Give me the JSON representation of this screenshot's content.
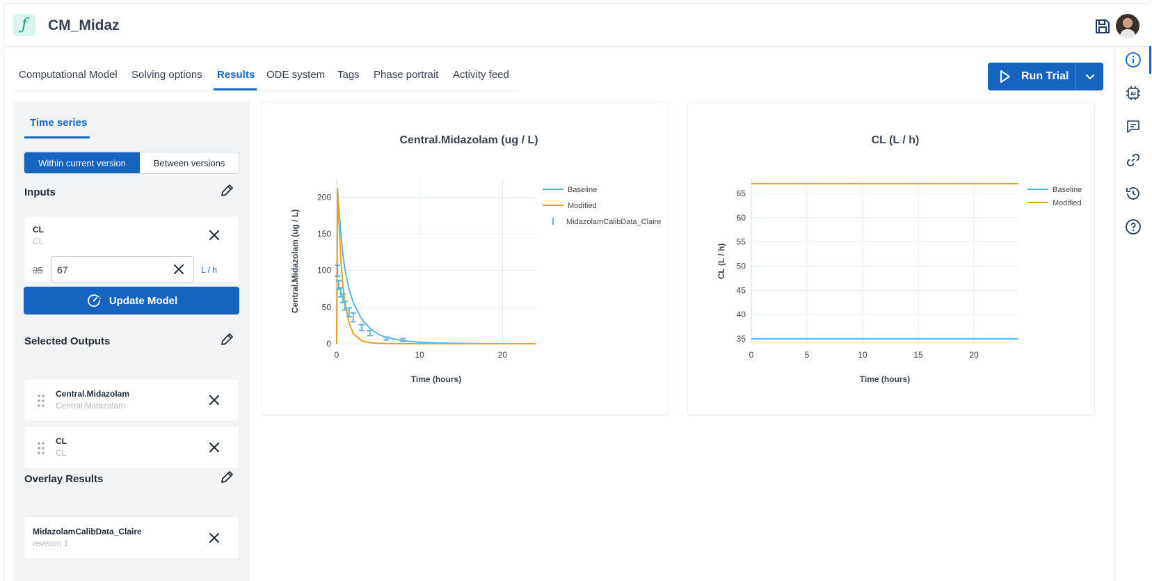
{
  "app": {
    "logo_glyph": "ƒ",
    "title": "CM_Midaz"
  },
  "header": {
    "icons": [
      "save-icon",
      "avatar"
    ]
  },
  "tabs": [
    {
      "label": "Computational Model",
      "active": false
    },
    {
      "label": "Solving options",
      "active": false
    },
    {
      "label": "Results",
      "active": true
    },
    {
      "label": "ODE system",
      "active": false
    },
    {
      "label": "Tags",
      "active": false
    },
    {
      "label": "Phase portrait",
      "active": false
    },
    {
      "label": "Activity feed",
      "active": false
    }
  ],
  "run_trial": {
    "label": "Run Trial"
  },
  "right_rail": {
    "icons": [
      "info-icon",
      "ai-chip-icon",
      "comment-icon",
      "link-icon",
      "history-icon",
      "help-icon"
    ],
    "active": "info-icon"
  },
  "left": {
    "subtab": "Time series",
    "segmented": {
      "on": "Within current version",
      "off": "Between versions"
    },
    "inputs": {
      "heading": "Inputs",
      "items": [
        {
          "name": "CL",
          "subtitle": "CL",
          "old_value": "35",
          "value": "67",
          "unit": "L / h"
        }
      ]
    },
    "update_label": "Update Model",
    "outputs": {
      "heading": "Selected Outputs",
      "items": [
        {
          "name": "Central.Midazolam",
          "subtitle": "Central.Midazolam"
        },
        {
          "name": "CL",
          "subtitle": "CL"
        }
      ]
    },
    "overlay": {
      "heading": "Overlay Results",
      "items": [
        {
          "name": "MidazolamCalibData_Claire",
          "subtitle": "revision 1"
        }
      ]
    }
  },
  "colors": {
    "primary": "#1565c0",
    "baseline": "#5ab4e5",
    "modified": "#f0a01e",
    "data": "#5ab4e5"
  },
  "chart_data": [
    {
      "type": "line",
      "title": "Central.Midazolam (ug / L)",
      "xlabel": "Time (hours)",
      "ylabel": "Central.Midazolam (ug / L)",
      "xlim": [
        0,
        24
      ],
      "ylim": [
        0,
        225
      ],
      "xticks": [
        0,
        10,
        20
      ],
      "yticks": [
        0,
        50,
        100,
        150,
        200
      ],
      "legend_position": "top-right",
      "grid": true,
      "series": [
        {
          "name": "Baseline",
          "color": "#5ab4e5",
          "x": [
            0,
            0.1,
            0.25,
            0.5,
            0.75,
            1,
            1.5,
            2,
            3,
            4,
            5,
            6,
            8,
            10,
            12,
            16,
            20,
            24
          ],
          "y": [
            0,
            211,
            188,
            150,
            122,
            101,
            74,
            56,
            34,
            21,
            13,
            8.5,
            4,
            2,
            1,
            0.3,
            0.1,
            0
          ]
        },
        {
          "name": "Modified",
          "color": "#f0a01e",
          "x": [
            0,
            0.1,
            0.25,
            0.5,
            0.75,
            1,
            1.5,
            2,
            3,
            4,
            5,
            6,
            8,
            10,
            12,
            16,
            20,
            24
          ],
          "y": [
            0,
            212,
            170,
            115,
            80,
            56,
            28,
            14,
            4,
            1.5,
            0.6,
            0.2,
            0,
            0,
            0,
            0,
            0,
            0
          ]
        }
      ],
      "errorbars": {
        "name": "MidazolamCalibData_Claire",
        "color": "#5ab4e5",
        "points": [
          {
            "x": 0.1,
            "y": 100,
            "low": 92,
            "high": 107
          },
          {
            "x": 0.25,
            "y": 80,
            "low": 74,
            "high": 86
          },
          {
            "x": 0.5,
            "y": 70,
            "low": 64,
            "high": 76
          },
          {
            "x": 0.75,
            "y": 62,
            "low": 56,
            "high": 68
          },
          {
            "x": 1,
            "y": 52,
            "low": 46,
            "high": 58
          },
          {
            "x": 1.5,
            "y": 43,
            "low": 37,
            "high": 49
          },
          {
            "x": 2,
            "y": 36,
            "low": 30,
            "high": 42
          },
          {
            "x": 3,
            "y": 22,
            "low": 18,
            "high": 26
          },
          {
            "x": 4,
            "y": 15,
            "low": 11,
            "high": 18
          },
          {
            "x": 6,
            "y": 7,
            "low": 5,
            "high": 9
          },
          {
            "x": 8,
            "y": 5,
            "low": 3,
            "high": 7
          }
        ]
      }
    },
    {
      "type": "line",
      "title": "CL (L / h)",
      "xlabel": "Time (hours)",
      "ylabel": "CL (L / h)",
      "xlim": [
        0,
        24
      ],
      "ylim": [
        34,
        68
      ],
      "xticks": [
        0,
        5,
        10,
        15,
        20
      ],
      "yticks": [
        35,
        40,
        45,
        50,
        55,
        60,
        65
      ],
      "legend_position": "top-right",
      "grid": true,
      "series": [
        {
          "name": "Baseline",
          "color": "#5ab4e5",
          "x": [
            0,
            24
          ],
          "y": [
            35,
            35
          ]
        },
        {
          "name": "Modified",
          "color": "#f0a01e",
          "x": [
            0,
            24
          ],
          "y": [
            67,
            67
          ]
        }
      ]
    }
  ]
}
